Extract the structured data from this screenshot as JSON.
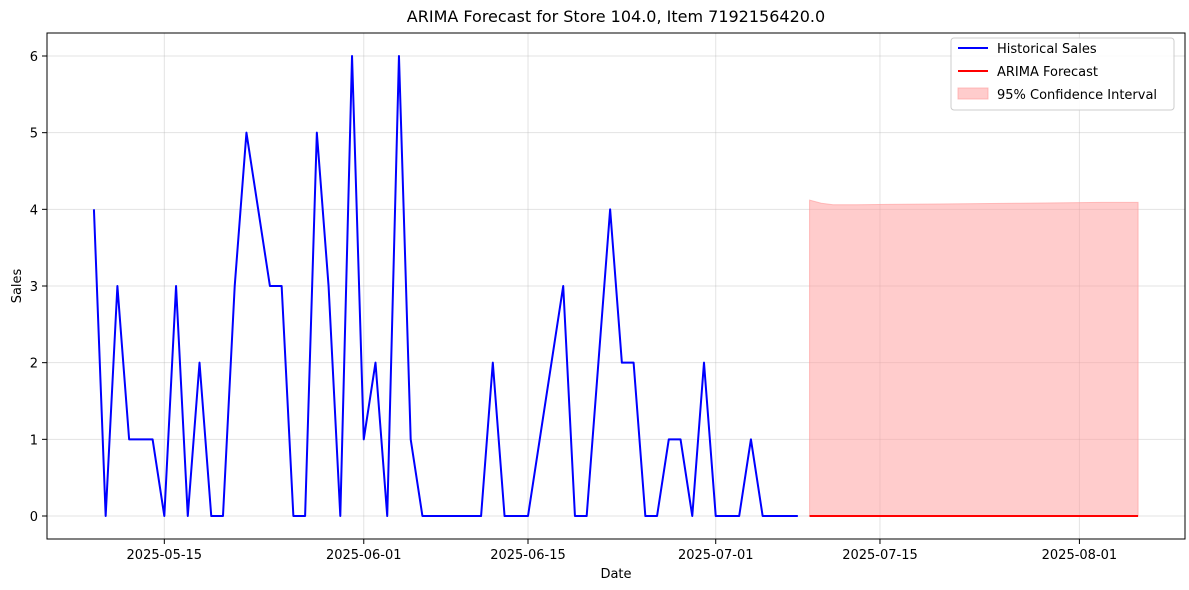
{
  "chart_data": {
    "type": "line",
    "title": "ARIMA Forecast for Store 104.0, Item 7192156420.0",
    "xlabel": "Date",
    "ylabel": "Sales",
    "xlim": [
      "2025-05-05",
      "2025-08-10"
    ],
    "ylim": [
      -0.3,
      6.3
    ],
    "x_ticks": [
      "2025-05-15",
      "2025-06-01",
      "2025-06-15",
      "2025-07-01",
      "2025-07-15",
      "2025-08-01"
    ],
    "y_ticks": [
      0,
      1,
      2,
      3,
      4,
      5,
      6
    ],
    "grid": true,
    "legend": "top-right",
    "colors": {
      "historical": "#0000ff",
      "forecast": "#ff0000",
      "ci": "#ff9999"
    },
    "series": [
      {
        "name": "Historical Sales",
        "x": [
          "2025-05-09",
          "2025-05-10",
          "2025-05-11",
          "2025-05-12",
          "2025-05-13",
          "2025-05-14",
          "2025-05-15",
          "2025-05-16",
          "2025-05-17",
          "2025-05-18",
          "2025-05-19",
          "2025-05-20",
          "2025-05-21",
          "2025-05-22",
          "2025-05-23",
          "2025-05-24",
          "2025-05-25",
          "2025-05-26",
          "2025-05-27",
          "2025-05-28",
          "2025-05-29",
          "2025-05-30",
          "2025-05-31",
          "2025-06-01",
          "2025-06-02",
          "2025-06-03",
          "2025-06-04",
          "2025-06-05",
          "2025-06-06",
          "2025-06-07",
          "2025-06-08",
          "2025-06-09",
          "2025-06-10",
          "2025-06-11",
          "2025-06-12",
          "2025-06-13",
          "2025-06-14",
          "2025-06-15",
          "2025-06-16",
          "2025-06-17",
          "2025-06-18",
          "2025-06-19",
          "2025-06-20",
          "2025-06-21",
          "2025-06-22",
          "2025-06-23",
          "2025-06-24",
          "2025-06-25",
          "2025-06-26",
          "2025-06-27",
          "2025-06-28",
          "2025-06-29",
          "2025-06-30",
          "2025-07-01",
          "2025-07-02",
          "2025-07-03",
          "2025-07-04",
          "2025-07-05",
          "2025-07-06",
          "2025-07-07",
          "2025-07-08"
        ],
        "values": [
          4,
          0,
          3,
          1,
          1,
          1,
          0,
          3,
          0,
          2,
          0,
          0,
          3,
          5,
          4,
          3,
          3,
          0,
          0,
          5,
          3,
          0,
          6,
          1,
          2,
          0,
          6,
          1,
          0,
          0,
          0,
          0,
          0,
          0,
          2,
          0,
          0,
          0,
          1,
          2,
          3,
          0,
          0,
          2,
          4,
          2,
          2,
          0,
          0,
          1,
          1,
          0,
          2,
          0,
          0,
          0,
          1,
          0,
          0,
          0,
          0
        ]
      },
      {
        "name": "ARIMA Forecast",
        "x": [
          "2025-07-09",
          "2025-08-06"
        ],
        "values": [
          0,
          0
        ]
      },
      {
        "name": "95% Confidence Interval",
        "x": [
          "2025-07-09",
          "2025-07-10",
          "2025-07-11",
          "2025-07-13",
          "2025-07-20",
          "2025-07-27",
          "2025-08-03",
          "2025-08-06"
        ],
        "lower": [
          0,
          0,
          0,
          0,
          0,
          0,
          0,
          0
        ],
        "upper": [
          4.12,
          4.08,
          4.06,
          4.06,
          4.07,
          4.08,
          4.09,
          4.09
        ]
      }
    ]
  }
}
